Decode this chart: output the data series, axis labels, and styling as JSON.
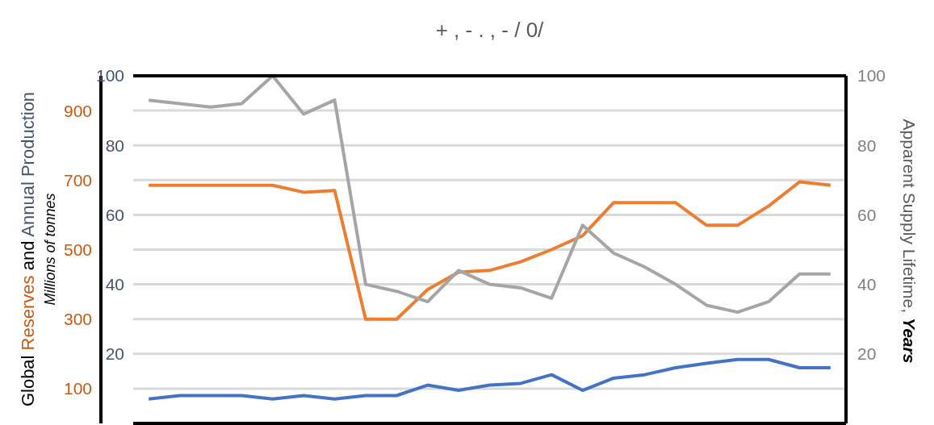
{
  "chart_data": {
    "type": "line",
    "title": "+ , - . , - / 0/",
    "ylabel": "Global Reserves and Annual Production\nMillions of tonnes",
    "y2label": "Apparent Supply Lifetime, Years",
    "categories": [
      null,
      null,
      null,
      null,
      null,
      null,
      null,
      null,
      null,
      null,
      null,
      null,
      null,
      null,
      null,
      null,
      null,
      null,
      null,
      null,
      null,
      null,
      null
    ],
    "series": [
      {
        "color": "#ed7d31",
        "axis": "y3",
        "values": [
          685,
          685,
          685,
          685,
          685,
          665,
          670,
          300,
          300,
          385,
          435,
          440,
          465,
          500,
          540,
          635,
          635,
          635,
          570,
          570,
          625,
          695,
          685
        ]
      },
      {
        "color": "#a5a5a5",
        "axis": "y2",
        "values": [
          93,
          92,
          91,
          92,
          100,
          89,
          93,
          40,
          38,
          35,
          44,
          40,
          39,
          36,
          57,
          49,
          45,
          40,
          34,
          32,
          35,
          43,
          43
        ]
      },
      {
        "color": "#4472c4",
        "axis": "y",
        "values": [
          7,
          8,
          8,
          8,
          7,
          8,
          7,
          8,
          8,
          11,
          9.5,
          11,
          11.5,
          14,
          9.5,
          13,
          14,
          16,
          17.3,
          18.4,
          18.4,
          16,
          16
        ]
      }
    ],
    "ylim": [
      0,
      100
    ],
    "yticks": [
      20,
      40,
      60,
      80,
      100
    ],
    "y2lim": [
      0,
      100
    ],
    "y2ticks": [
      20,
      40,
      60,
      80,
      100
    ],
    "y3lim": [
      0,
      1000
    ],
    "y3ticks": [
      100,
      300,
      500,
      700,
      900
    ],
    "grid": "y",
    "marker": "none",
    "line_style": "solid"
  }
}
